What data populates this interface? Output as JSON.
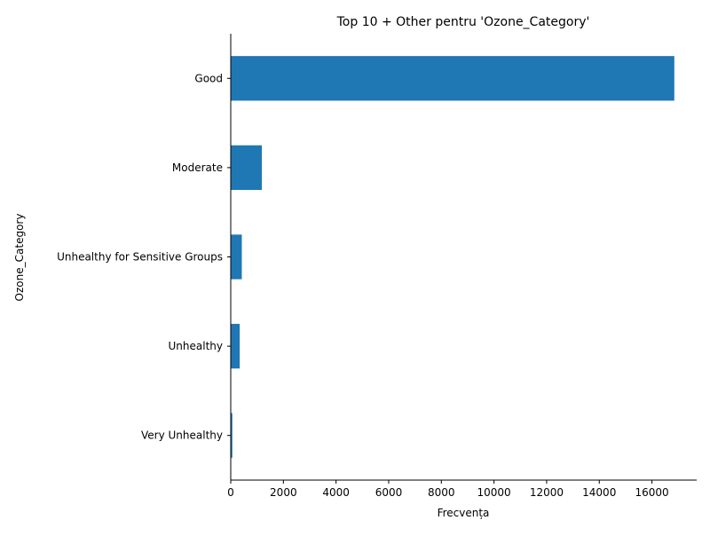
{
  "chart_data": {
    "type": "bar",
    "orientation": "horizontal",
    "title": "Top 10 + Other pentru 'Ozone_Category'",
    "xlabel": "Frecvența",
    "ylabel": "Ozone_Category",
    "categories": [
      "Good",
      "Moderate",
      "Unhealthy for Sensitive Groups",
      "Unhealthy",
      "Very Unhealthy"
    ],
    "values": [
      16850,
      1180,
      420,
      340,
      60
    ],
    "xlim": [
      0,
      17700
    ],
    "xticks": [
      0,
      2000,
      4000,
      6000,
      8000,
      10000,
      12000,
      14000,
      16000
    ],
    "bar_color": "#1f77b4",
    "grid": false
  }
}
